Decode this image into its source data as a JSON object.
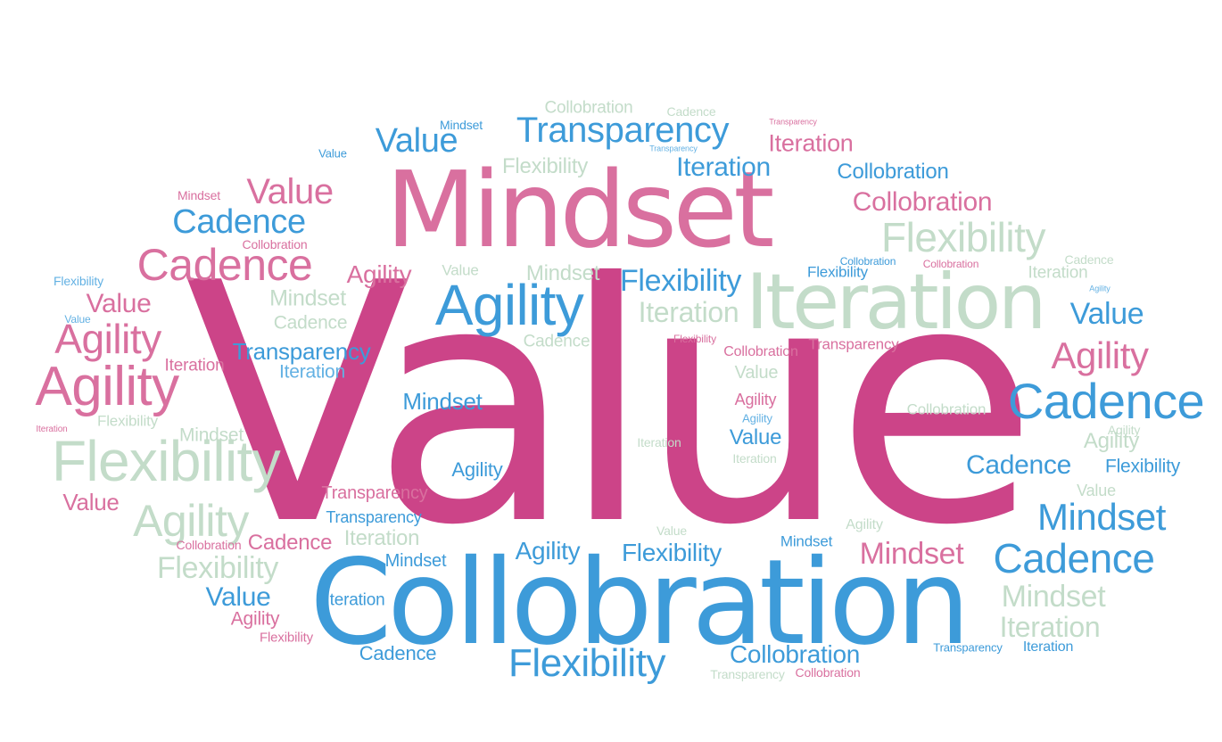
{
  "colors": {
    "pink": "#cc4488",
    "light_pink": "#d9709f",
    "blue": "#3d9bd9",
    "light_blue": "#63b1e3",
    "sage": "#c3dcc9",
    "background": "#ffffff"
  },
  "words": {
    "w1": "Value",
    "w2": "Collobration",
    "w3": "Mindset",
    "w4": "Iteration",
    "w5": "Value",
    "w6": "Transparency",
    "w7": "Value",
    "w8": "Collobration",
    "w9": "Mindset",
    "w10": "Cadence",
    "w11": "Transparency",
    "w12": "Iteration",
    "w13": "Collobration",
    "w14": "Flexibility",
    "w15": "Iteration",
    "w16": "Collobration",
    "w17": "Mindset",
    "w18": "Value",
    "w19": "Cadence",
    "w20": "Transparency",
    "w21": "Flexibility",
    "w22": "Collobration",
    "w23": "Cadence",
    "w24": "Collobration",
    "w25": "Cadence",
    "w26": "Flexibility",
    "w27": "Flexibility",
    "w28": "Collobration",
    "w29": "Iteration",
    "w30": "Agility",
    "w31": "Value",
    "w32": "Mindset",
    "w33": "Flexibility",
    "w34": "Agility",
    "w35": "Value",
    "w36": "Mindset",
    "w37": "Agility",
    "w38": "Value",
    "w39": "Cadence",
    "w40": "Iteration",
    "w41": "Value",
    "w42": "Agility",
    "w43": "Cadence",
    "w44": "Flexibility",
    "w45": "Transparency",
    "w46": "Agility",
    "w47": "Transparency",
    "w48": "Iteration",
    "w49": "Collobration",
    "w50": "Agility",
    "w51": "Iteration",
    "w52": "Value",
    "w53": "Cadence",
    "w54": "Mindset",
    "w55": "Agility",
    "w56": "Collobration",
    "w57": "Agility",
    "w58": "Flexibility",
    "w59": "Iteration",
    "w60": "Mindset",
    "w61": "Agility",
    "w62": "Value",
    "w63": "Iteration",
    "w64": "Agility",
    "w65": "Flexibility",
    "w66": "Iteration",
    "w67": "Cadence",
    "w68": "Flexibility",
    "w69": "Agility",
    "w70": "Value",
    "w71": "Transparency",
    "w72": "Value",
    "w73": "Agility",
    "w74": "Mindset",
    "w75": "Transparency",
    "w76": "Agility",
    "w77": "Value",
    "w78": "Collobration",
    "w79": "Cadence",
    "w80": "Iteration",
    "w81": "Mindset",
    "w82": "Agility",
    "w83": "Flexibility",
    "w84": "Mindset",
    "w85": "Cadence",
    "w86": "Flexibility",
    "w87": "Mindset",
    "w88": "Value",
    "w89": "Iteration",
    "w90": "Mindset",
    "w91": "Agility",
    "w92": "Iteration",
    "w93": "Flexibility",
    "w94": "Cadence",
    "w95": "Flexibility",
    "w96": "Collobration",
    "w97": "Transparency",
    "w98": "Iteration",
    "w99": "Transparency",
    "w100": "Collobration",
    "w101": "Flexibility",
    "w102": "Cadence",
    "w103": "Mindset",
    "w104": "Mindset",
    "w105": "Iteration",
    "w106": "Value",
    "w107": "Cadence",
    "w108": "Agility",
    "w109": "Cadence",
    "w110": "Flexibility",
    "w111": "Collobration",
    "w112": "Iteration"
  }
}
